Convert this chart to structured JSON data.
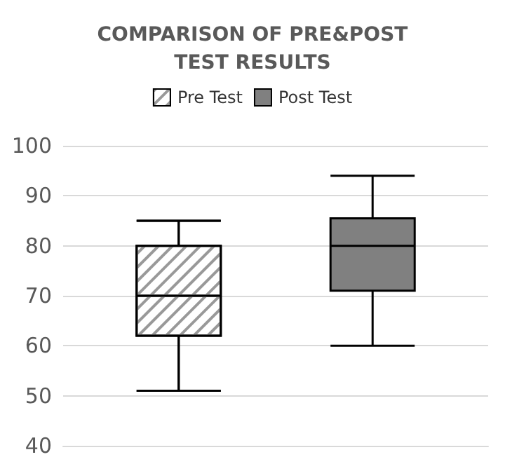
{
  "chart_data": {
    "type": "box",
    "title": "COMPARISON OF PRE&POST\nTEST RESULTS",
    "categories": [
      null
    ],
    "series": [
      {
        "name": "Pre Test",
        "color": "#ffffff",
        "boxes": [
          {
            "low": 51,
            "q1": 62,
            "median": 70,
            "q3": 80,
            "high": 85
          }
        ]
      },
      {
        "name": "Post Test",
        "color": "#808080",
        "boxes": [
          {
            "low": 60,
            "q1": 71,
            "median": 80,
            "q3": 85.5,
            "high": 94
          }
        ]
      }
    ],
    "ylim": [
      40,
      100
    ],
    "yticks": [
      40,
      50,
      60,
      70,
      80,
      90,
      100
    ],
    "grid": "y",
    "legend": "top"
  }
}
